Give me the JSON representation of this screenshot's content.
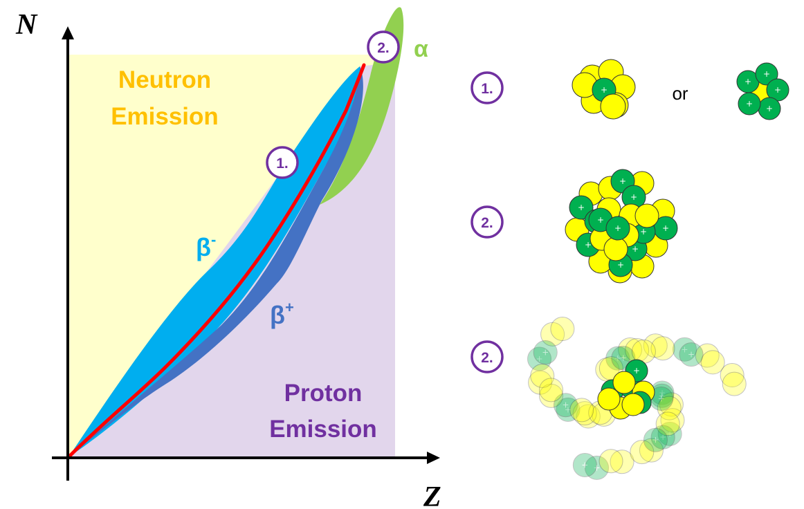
{
  "axes": {
    "y_label": "N",
    "x_label": "Z"
  },
  "regions": {
    "neutron": [
      "Neutron",
      "Emission"
    ],
    "proton": [
      "Proton",
      "Emission"
    ],
    "beta_minus": {
      "base": "β",
      "sup": "-"
    },
    "beta_plus": {
      "base": "β",
      "sup": "+"
    },
    "alpha": "α"
  },
  "plot_markers": {
    "one": "1.",
    "two": "2."
  },
  "legend": {
    "row1": {
      "marker": "1.",
      "connector": "or"
    },
    "row2": {
      "marker": "2."
    },
    "row3": {
      "marker": "2."
    }
  },
  "proton_symbol": "+",
  "colors": {
    "neutron_region": "#FFFFCC",
    "proton_region": "#E2D6EC",
    "beta_minus": "#00AEEF",
    "beta_plus": "#4472C4",
    "alpha": "#92D050",
    "stability_line": "#FF0000",
    "neutron_text": "#FFC000",
    "proton_text": "#7030A0",
    "marker_border": "#7030A0",
    "neutron_ball": "#FFFF00",
    "proton_ball": "#00B050"
  }
}
